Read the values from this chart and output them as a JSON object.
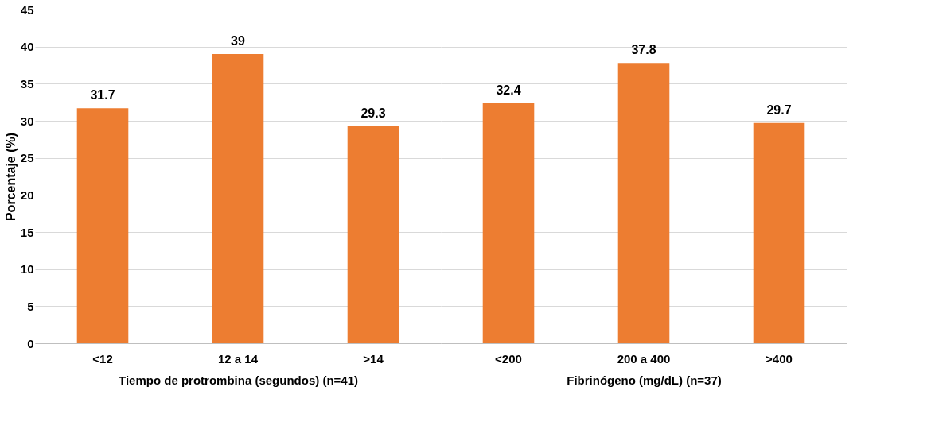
{
  "chart_data": [
    {
      "type": "bar",
      "xlabel": "Tiempo de protrombina (segundos) (n=41)",
      "ylabel": "Porcentaje (%)",
      "categories": [
        "<12",
        "12 a 14",
        ">14"
      ],
      "values": [
        31.7,
        39,
        29.3
      ],
      "color": "#ed7d31",
      "ylim": [
        0,
        45
      ],
      "yticks": [
        0,
        5,
        10,
        15,
        20,
        25,
        30,
        35,
        40,
        45
      ],
      "grid": "y",
      "data_labels": true
    },
    {
      "type": "bar",
      "xlabel": "Fibrinógeno (mg/dL) (n=37)",
      "categories": [
        "<200",
        "200  a 400",
        ">400"
      ],
      "values": [
        32.4,
        37.8,
        29.7
      ],
      "color": "#ed7d31",
      "ylim": [
        0,
        45
      ],
      "yticks": [
        0,
        5,
        10,
        15,
        20,
        25,
        30,
        35,
        40,
        45
      ],
      "grid": "y",
      "data_labels": true,
      "tick_labels": "x"
    }
  ]
}
